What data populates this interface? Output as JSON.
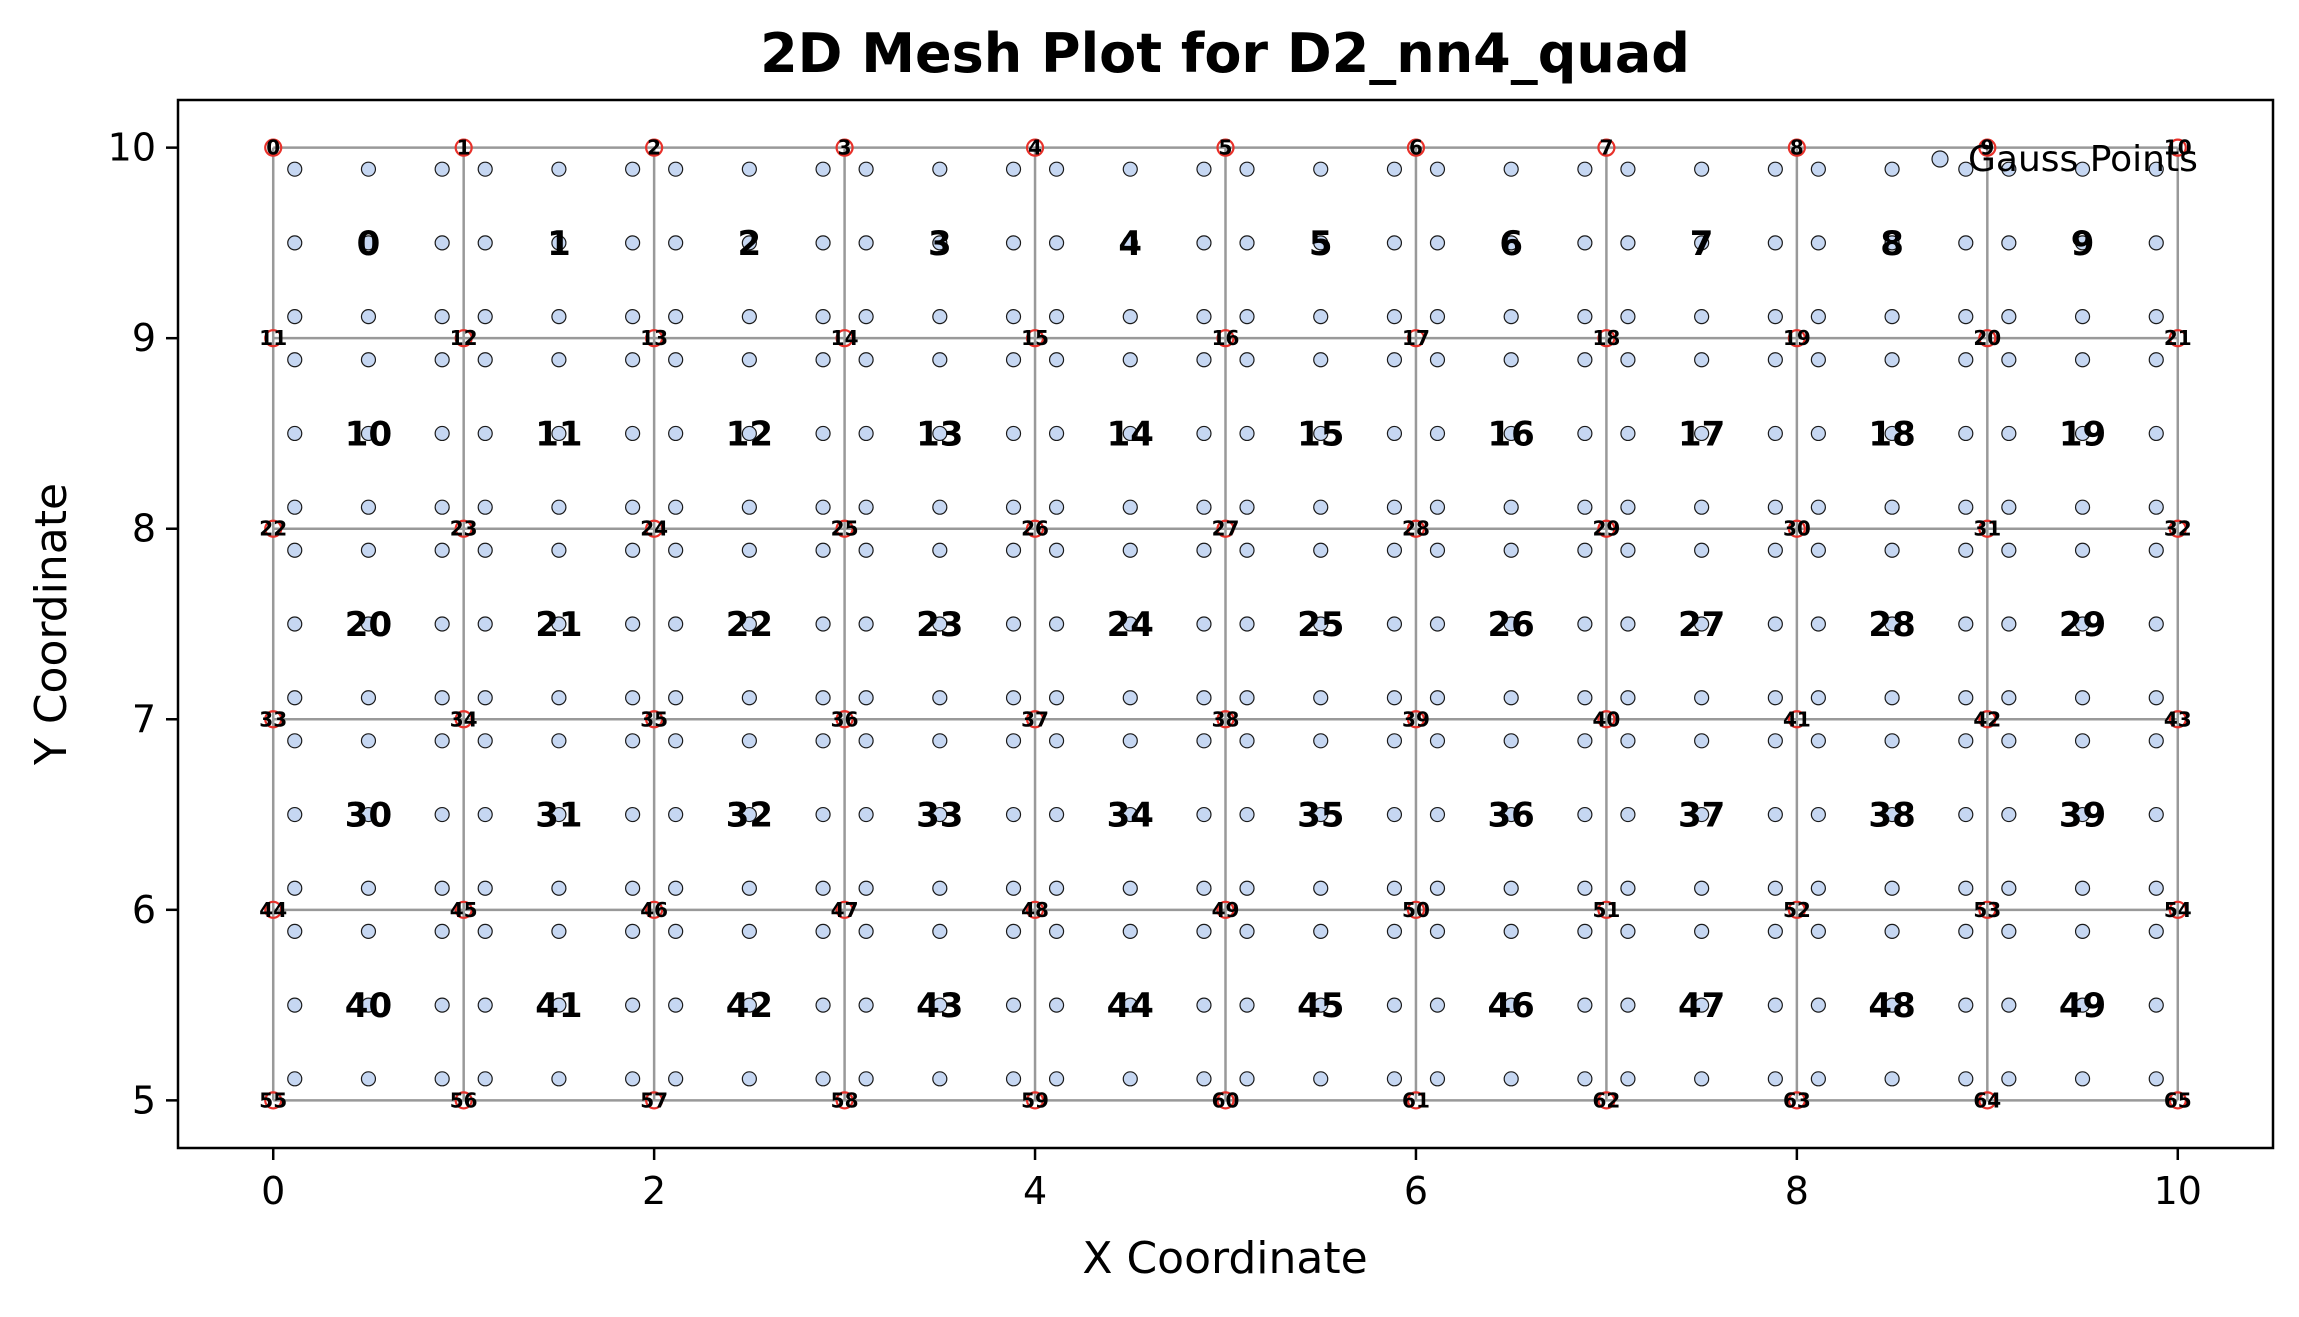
{
  "chart_data": {
    "type": "scatter",
    "title": "2D Mesh Plot for D2_nn4_quad",
    "xlabel": "X Coordinate",
    "ylabel": "Y Coordinate",
    "xlim": [
      -0.5,
      10.5
    ],
    "ylim": [
      4.75,
      10.25
    ],
    "x_ticks": [
      0,
      2,
      4,
      6,
      8,
      10
    ],
    "y_ticks": [
      5,
      6,
      7,
      8,
      9,
      10
    ],
    "grid": false,
    "legend": {
      "position": "top-right",
      "entries": [
        "Gauss Points"
      ]
    },
    "mesh": {
      "x_divisions": 10,
      "y_divisions": 5,
      "x_range": [
        0,
        10
      ],
      "y_range": [
        5,
        10
      ],
      "node_count": 66,
      "element_count": 50,
      "nodes_per_element": 4,
      "node_numbering": "row-major from top-left (0) to bottom-right (65)",
      "element_numbering": "row-major from top-left (0) to bottom-right (49)"
    },
    "gauss_points": {
      "name": "Gauss Points",
      "offsets_in_element": [
        0.113,
        0.5,
        0.887
      ],
      "per_element": 9
    },
    "colors": {
      "mesh_line": "#999999",
      "node_marker": "#e8312a",
      "gauss_fill": "#c6d7f2",
      "gauss_edge": "#1a1a1a",
      "axes": "#000000"
    }
  }
}
